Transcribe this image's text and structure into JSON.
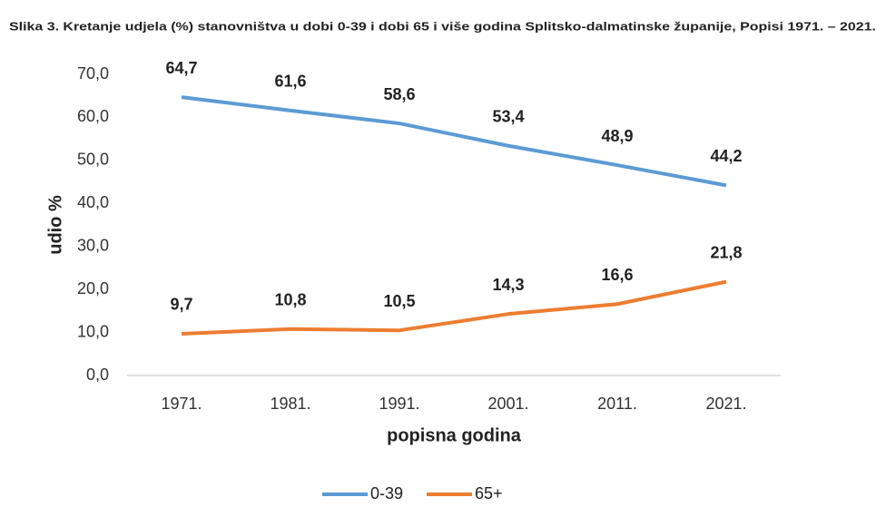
{
  "chart_data": {
    "type": "line",
    "title": "Slika 3. Kretanje udjela (%) stanovništva u dobi 0-39 i dobi 65 i više godina Splitsko-dalmatinske županije, Popisi 1971. – 2021.",
    "x_label": "popisna godina",
    "y_label": "udio %",
    "categories": [
      "1971.",
      "1981.",
      "1991.",
      "2001.",
      "2011.",
      "2021."
    ],
    "series": [
      {
        "name": "0-39",
        "color": "#5b9bd5",
        "values": [
          64.7,
          61.6,
          58.6,
          53.4,
          48.9,
          44.2
        ],
        "value_labels": [
          "64,7",
          "61,6",
          "58,6",
          "53,4",
          "48,9",
          "44,2"
        ]
      },
      {
        "name": "65+",
        "color": "#ed7d31",
        "values": [
          9.7,
          10.8,
          10.5,
          14.3,
          16.6,
          21.8
        ],
        "value_labels": [
          "9,7",
          "10,8",
          "10,5",
          "14,3",
          "16,6",
          "21,8"
        ]
      }
    ],
    "ylim": [
      0,
      70
    ],
    "yticks": [
      {
        "value": 0,
        "label": "0,0"
      },
      {
        "value": 10,
        "label": "10,0"
      },
      {
        "value": 20,
        "label": "20,0"
      },
      {
        "value": 30,
        "label": "30,0"
      },
      {
        "value": 40,
        "label": "40,0"
      },
      {
        "value": 50,
        "label": "50,0"
      },
      {
        "value": 60,
        "label": "60,0"
      },
      {
        "value": 70,
        "label": "70,0"
      }
    ],
    "grid": false,
    "legend": "bottom"
  }
}
